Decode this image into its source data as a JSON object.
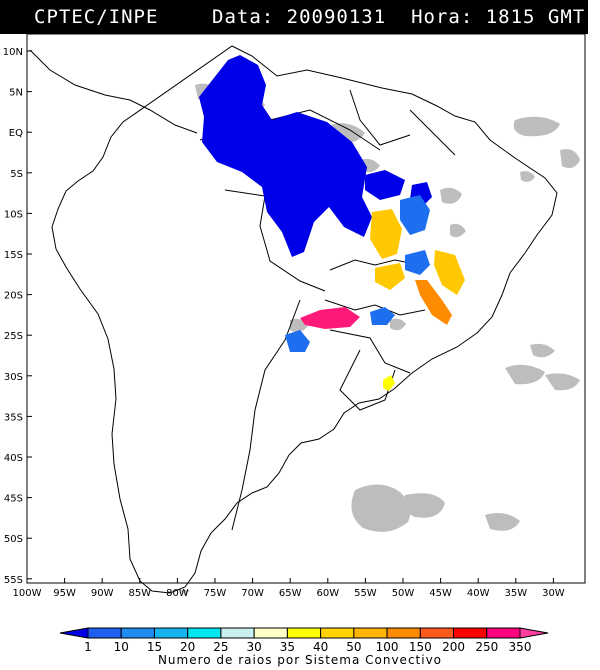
{
  "header": {
    "source": "CPTEC/INPE",
    "date_label": "Data:",
    "date_value": "20090131",
    "time_label": "Hora:",
    "time_value": "1815 GMT"
  },
  "map": {
    "lat_ticks": [
      "10N",
      "5N",
      "EQ",
      "5S",
      "10S",
      "15S",
      "20S",
      "25S",
      "30S",
      "35S",
      "40S",
      "45S",
      "50S",
      "55S"
    ],
    "lon_ticks": [
      "100W",
      "95W",
      "90W",
      "85W",
      "80W",
      "75W",
      "70W",
      "65W",
      "60W",
      "55W",
      "50W",
      "45W",
      "40W",
      "35W",
      "30W"
    ],
    "extent": {
      "lon_min": -101,
      "lon_max": -27,
      "lat_min": -56,
      "lat_max": 12
    }
  },
  "legend": {
    "values": [
      "1",
      "10",
      "15",
      "20",
      "25",
      "30",
      "35",
      "40",
      "50",
      "100",
      "150",
      "200",
      "250",
      "350"
    ],
    "colors": [
      "#0000e8",
      "#1e5ef0",
      "#1e8cf0",
      "#14b4f0",
      "#00e6f0",
      "#c8f0f0",
      "#ffffc8",
      "#ffff00",
      "#ffd200",
      "#ffb400",
      "#ff8c00",
      "#ff5a1e",
      "#ff0000",
      "#ff0080",
      "#ff3ca0"
    ],
    "caption": "Numero de raios por Sistema Convectivo"
  },
  "colors": {
    "cloud": "#bdbdbd",
    "storm_dense": "#0000e8",
    "storm_med": "#1e6ef0",
    "storm_yellow": "#ffc800",
    "storm_orange": "#ff8c00",
    "storm_magenta": "#ff1a7a",
    "storm_pure_yellow": "#ffff00"
  }
}
